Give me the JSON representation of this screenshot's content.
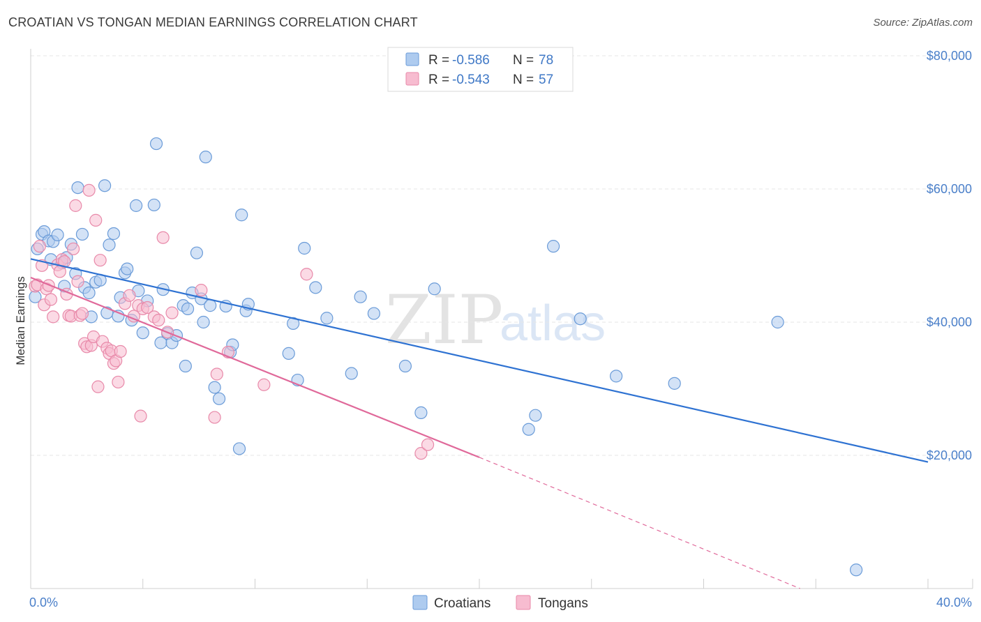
{
  "title": "CROATIAN VS TONGAN MEDIAN EARNINGS CORRELATION CHART",
  "source": "Source: ZipAtlas.com",
  "watermark": {
    "zip": "ZIP",
    "atlas": "atlas"
  },
  "legend": {
    "rows": [
      {
        "r_label": "R = ",
        "r_value": "-0.586",
        "n_label": "N = ",
        "n_value": "78"
      },
      {
        "r_label": "R = ",
        "r_value": "-0.543",
        "n_label": "N = ",
        "n_value": "57"
      }
    ]
  },
  "colors": {
    "croatians_fill": "#aecbef",
    "croatians_stroke": "#6a9bd8",
    "croatians_line": "#2e72d2",
    "tongans_fill": "#f7bcd0",
    "tongans_stroke": "#e889a9",
    "tongans_line": "#e0699a",
    "grid": "#e6e6e6",
    "axis_text": "#4a7fc9"
  },
  "chart_data": {
    "type": "scatter",
    "title": "CROATIAN VS TONGAN MEDIAN EARNINGS CORRELATION CHART",
    "xlabel": "",
    "ylabel": "Median Earnings",
    "xlim": [
      0,
      0.42
    ],
    "ylim": [
      0,
      82000
    ],
    "x_tick_labels": [
      "0.0%",
      "40.0%"
    ],
    "y_ticks": [
      20000,
      40000,
      60000,
      80000
    ],
    "y_tick_labels": [
      "$20,000",
      "$40,000",
      "$60,000",
      "$80,000"
    ],
    "grid": true,
    "legend_position": "top-center",
    "series": [
      {
        "name": "Croatians",
        "r": -0.586,
        "n": 78,
        "trend": {
          "x": [
            0.0,
            0.4
          ],
          "y": [
            49500,
            19000
          ],
          "dashed_to": null
        },
        "points": [
          [
            0.002,
            43800
          ],
          [
            0.003,
            51000
          ],
          [
            0.005,
            53200
          ],
          [
            0.006,
            53600
          ],
          [
            0.008,
            52200
          ],
          [
            0.009,
            49400
          ],
          [
            0.01,
            52100
          ],
          [
            0.012,
            53100
          ],
          [
            0.014,
            48900
          ],
          [
            0.015,
            45400
          ],
          [
            0.016,
            49700
          ],
          [
            0.018,
            51700
          ],
          [
            0.02,
            47300
          ],
          [
            0.021,
            60200
          ],
          [
            0.023,
            53200
          ],
          [
            0.024,
            45200
          ],
          [
            0.026,
            44400
          ],
          [
            0.027,
            40800
          ],
          [
            0.029,
            46000
          ],
          [
            0.031,
            46300
          ],
          [
            0.033,
            60500
          ],
          [
            0.034,
            41400
          ],
          [
            0.035,
            51600
          ],
          [
            0.037,
            53300
          ],
          [
            0.039,
            40900
          ],
          [
            0.04,
            43700
          ],
          [
            0.042,
            47400
          ],
          [
            0.043,
            48000
          ],
          [
            0.045,
            40300
          ],
          [
            0.047,
            57500
          ],
          [
            0.048,
            44700
          ],
          [
            0.05,
            38400
          ],
          [
            0.052,
            43200
          ],
          [
            0.055,
            57600
          ],
          [
            0.056,
            66800
          ],
          [
            0.058,
            36900
          ],
          [
            0.059,
            44900
          ],
          [
            0.061,
            38300
          ],
          [
            0.063,
            36900
          ],
          [
            0.065,
            38000
          ],
          [
            0.068,
            42500
          ],
          [
            0.069,
            33400
          ],
          [
            0.07,
            42000
          ],
          [
            0.072,
            44400
          ],
          [
            0.074,
            50400
          ],
          [
            0.076,
            43500
          ],
          [
            0.077,
            40000
          ],
          [
            0.078,
            64800
          ],
          [
            0.08,
            42500
          ],
          [
            0.082,
            30200
          ],
          [
            0.084,
            28500
          ],
          [
            0.087,
            42400
          ],
          [
            0.089,
            35500
          ],
          [
            0.09,
            36600
          ],
          [
            0.093,
            21000
          ],
          [
            0.094,
            56100
          ],
          [
            0.096,
            41700
          ],
          [
            0.097,
            42700
          ],
          [
            0.115,
            35300
          ],
          [
            0.117,
            39800
          ],
          [
            0.119,
            31300
          ],
          [
            0.122,
            51100
          ],
          [
            0.127,
            45200
          ],
          [
            0.132,
            40600
          ],
          [
            0.143,
            32300
          ],
          [
            0.147,
            43800
          ],
          [
            0.153,
            41300
          ],
          [
            0.167,
            33400
          ],
          [
            0.174,
            26400
          ],
          [
            0.18,
            45000
          ],
          [
            0.222,
            23900
          ],
          [
            0.225,
            26000
          ],
          [
            0.233,
            51400
          ],
          [
            0.245,
            40500
          ],
          [
            0.261,
            31900
          ],
          [
            0.287,
            30800
          ],
          [
            0.333,
            40000
          ],
          [
            0.368,
            2800
          ]
        ]
      },
      {
        "name": "Tongans",
        "r": -0.543,
        "n": 57,
        "trend": {
          "x": [
            0.0,
            0.2
          ],
          "y": [
            46700,
            19700
          ],
          "dashed_to": [
            0.343,
            0
          ]
        },
        "points": [
          [
            0.002,
            45400
          ],
          [
            0.003,
            45600
          ],
          [
            0.004,
            51400
          ],
          [
            0.005,
            48500
          ],
          [
            0.006,
            42600
          ],
          [
            0.007,
            45000
          ],
          [
            0.008,
            45500
          ],
          [
            0.009,
            43400
          ],
          [
            0.01,
            40800
          ],
          [
            0.012,
            48600
          ],
          [
            0.013,
            47600
          ],
          [
            0.014,
            49400
          ],
          [
            0.015,
            49100
          ],
          [
            0.016,
            44200
          ],
          [
            0.017,
            41000
          ],
          [
            0.018,
            40900
          ],
          [
            0.019,
            51000
          ],
          [
            0.02,
            57500
          ],
          [
            0.021,
            46100
          ],
          [
            0.022,
            41000
          ],
          [
            0.023,
            41300
          ],
          [
            0.024,
            36800
          ],
          [
            0.025,
            36300
          ],
          [
            0.026,
            59800
          ],
          [
            0.027,
            36500
          ],
          [
            0.028,
            37800
          ],
          [
            0.029,
            55300
          ],
          [
            0.03,
            30300
          ],
          [
            0.031,
            49300
          ],
          [
            0.032,
            37100
          ],
          [
            0.034,
            36100
          ],
          [
            0.035,
            35300
          ],
          [
            0.036,
            35700
          ],
          [
            0.037,
            33800
          ],
          [
            0.038,
            34200
          ],
          [
            0.039,
            31000
          ],
          [
            0.04,
            35600
          ],
          [
            0.042,
            42800
          ],
          [
            0.044,
            44000
          ],
          [
            0.046,
            40900
          ],
          [
            0.048,
            42500
          ],
          [
            0.049,
            25900
          ],
          [
            0.05,
            42000
          ],
          [
            0.052,
            42200
          ],
          [
            0.055,
            40800
          ],
          [
            0.057,
            40300
          ],
          [
            0.059,
            52700
          ],
          [
            0.061,
            38500
          ],
          [
            0.063,
            41400
          ],
          [
            0.076,
            44800
          ],
          [
            0.082,
            25700
          ],
          [
            0.083,
            32200
          ],
          [
            0.088,
            35500
          ],
          [
            0.104,
            30600
          ],
          [
            0.123,
            47200
          ],
          [
            0.174,
            20300
          ],
          [
            0.177,
            21600
          ]
        ]
      }
    ]
  },
  "bottom_legend": [
    "Croatians",
    "Tongans"
  ]
}
